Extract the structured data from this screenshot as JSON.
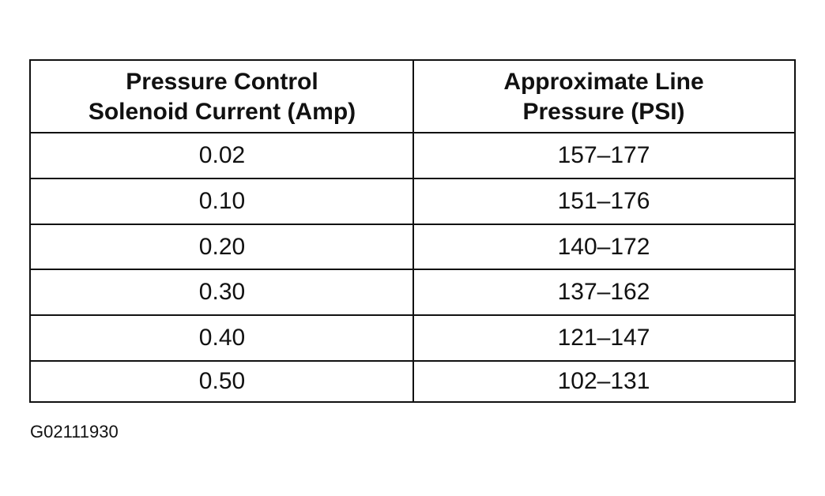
{
  "table": {
    "header": [
      [
        "Pressure Control",
        "Solenoid Current (Amp)"
      ],
      [
        "Approximate Line",
        "Pressure (PSI)"
      ]
    ],
    "rows": [
      [
        "0.02",
        "157–177"
      ],
      [
        "0.10",
        "151–176"
      ],
      [
        "0.20",
        "140–172"
      ],
      [
        "0.30",
        "137–162"
      ],
      [
        "0.40",
        "121–147"
      ],
      [
        "0.50",
        "102–131"
      ]
    ]
  },
  "caption": "G02111930"
}
